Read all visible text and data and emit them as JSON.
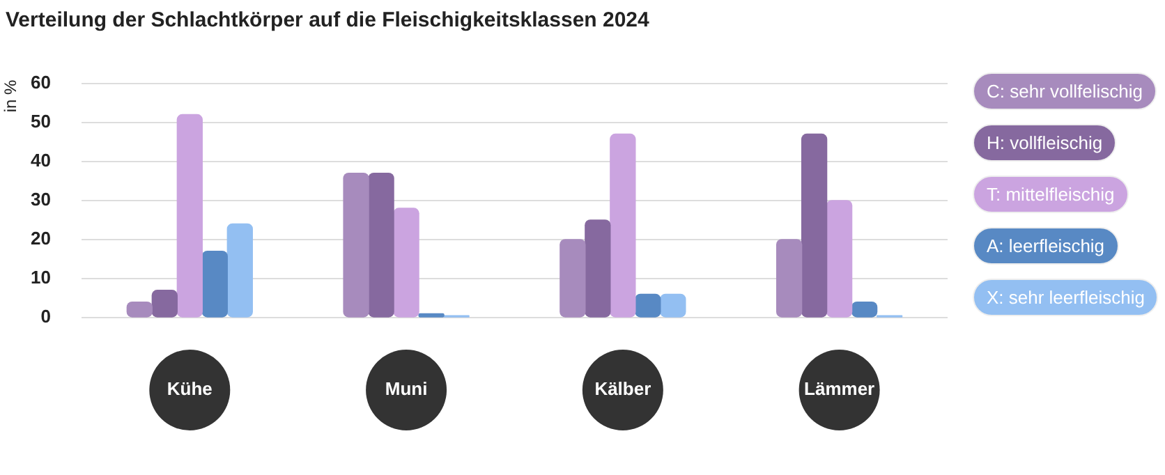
{
  "chart_data": {
    "type": "bar",
    "title": "Verteilung der Schlachtkörper auf die Fleischigkeitsklassen 2024",
    "ylabel": "in %",
    "categories": [
      "Kühe",
      "Muni",
      "Kälber",
      "Lämmer"
    ],
    "series": [
      {
        "name": "C: sehr vollfelischig",
        "color": "#a78bbd",
        "values": [
          4,
          37,
          20,
          20
        ]
      },
      {
        "name": "H: vollfleischig",
        "color": "#86699f",
        "values": [
          7,
          37,
          25,
          47
        ]
      },
      {
        "name": "T: mittelfleischig",
        "color": "#cba4e0",
        "values": [
          52,
          28,
          47,
          30
        ]
      },
      {
        "name": "A: leerfleischig",
        "color": "#5889c4",
        "values": [
          17,
          1,
          6,
          4
        ]
      },
      {
        "name": "X: sehr leerfleischig",
        "color": "#93bff2",
        "values": [
          24,
          0.5,
          6,
          0.5
        ]
      }
    ],
    "ylim": [
      0,
      60
    ],
    "yticks": [
      0,
      10,
      20,
      30,
      40,
      50,
      60
    ],
    "grid": "y",
    "legend": "right"
  }
}
